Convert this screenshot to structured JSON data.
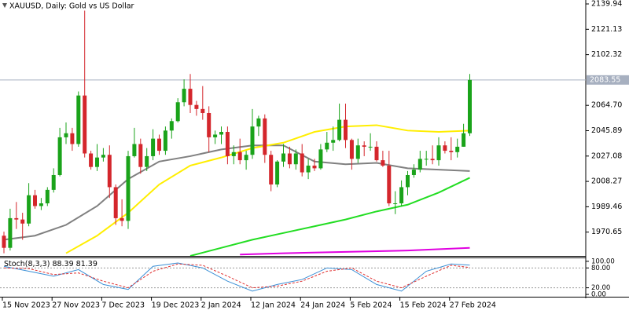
{
  "chart_data": {
    "type": "candlestick",
    "title": "XAUUSD, Daily:  Gold vs US Dollar",
    "categories": [
      "15 Nov 2023",
      null,
      null,
      null,
      null,
      null,
      null,
      null,
      "27 Nov 2023",
      null,
      null,
      null,
      null,
      null,
      null,
      null,
      "7 Dec 2023",
      null,
      null,
      null,
      null,
      null,
      null,
      null,
      "19 Dec 2023",
      null,
      null,
      null,
      null,
      null,
      null,
      null,
      "2 Jan 2024",
      null,
      null,
      null,
      null,
      null,
      null,
      null,
      "12 Jan 2024",
      null,
      null,
      null,
      null,
      null,
      null,
      null,
      "24 Jan 2024",
      null,
      null,
      null,
      null,
      null,
      null,
      null,
      "5 Feb 2024",
      null,
      null,
      null,
      null,
      null,
      null,
      null,
      "15 Feb 2024",
      null,
      null,
      null,
      null,
      null,
      null,
      null,
      "27 Feb 2024",
      null,
      null,
      null
    ],
    "open": [
      1968,
      1959,
      1981,
      1980,
      1977,
      1998,
      1990,
      1992,
      2002,
      2013,
      2041,
      2044,
      2036,
      2072,
      2029,
      2019,
      2026,
      2028,
      2004,
      1981,
      1979,
      2027,
      2036,
      2019,
      2027,
      2040,
      2031,
      2046,
      2053,
      2067,
      2077,
      2065,
      2062,
      2059,
      2041,
      2043,
      2045,
      2027,
      2030,
      2024,
      2028,
      2049,
      2055,
      2028,
      2006,
      2023,
      2029,
      2021,
      2029,
      2015,
      2020,
      2018,
      2032,
      2037,
      2039,
      2054,
      2039,
      2025,
      2035,
      2034,
      2034,
      2024,
      2020,
      1992,
      1992,
      2004,
      2013,
      2017,
      2025,
      2025,
      2024,
      2035,
      2031,
      2030,
      2034,
      2044
    ],
    "high": [
      1971,
      1988,
      1993,
      1985,
      2007,
      2002,
      1996,
      2004,
      2018,
      2048,
      2052,
      2048,
      2075,
      2135,
      2031,
      2036,
      2033,
      2035,
      2006,
      1995,
      2031,
      2048,
      2040,
      2033,
      2047,
      2043,
      2049,
      2055,
      2070,
      2084,
      2088,
      2068,
      2079,
      2064,
      2046,
      2049,
      2049,
      2035,
      2040,
      2031,
      2062,
      2057,
      2058,
      2031,
      2024,
      2036,
      2034,
      2032,
      2036,
      2025,
      2025,
      2036,
      2045,
      2049,
      2066,
      2066,
      2040,
      2040,
      2038,
      2044,
      2038,
      2031,
      2031,
      2001,
      2009,
      2016,
      2021,
      2031,
      2031,
      2035,
      2041,
      2038,
      2041,
      2040,
      2051,
      2088
    ],
    "low": [
      1955,
      1957,
      1973,
      1965,
      1975,
      1988,
      1987,
      1990,
      2000,
      2012,
      2036,
      2031,
      2034,
      2026,
      2017,
      2016,
      2023,
      1996,
      1976,
      1975,
      1973,
      2026,
      2014,
      2016,
      2024,
      2028,
      2028,
      2040,
      2052,
      2064,
      2059,
      2057,
      2054,
      2030,
      2036,
      2036,
      2021,
      2021,
      2021,
      2017,
      2025,
      2042,
      2022,
      2001,
      2004,
      2019,
      2018,
      2017,
      2012,
      2010,
      2016,
      2017,
      2030,
      2031,
      2038,
      2033,
      2017,
      2022,
      2027,
      2031,
      2023,
      2019,
      1990,
      1984,
      1990,
      1998,
      2011,
      2015,
      2020,
      2021,
      2020,
      2029,
      2024,
      2026,
      2034,
      2042
    ],
    "close": [
      1959,
      1981,
      1980,
      1977,
      1998,
      1990,
      1992,
      2002,
      2013,
      2041,
      2044,
      2036,
      2072,
      2029,
      2019,
      2026,
      2028,
      2004,
      1981,
      1979,
      2027,
      2036,
      2019,
      2027,
      2040,
      2031,
      2046,
      2053,
      2067,
      2077,
      2065,
      2062,
      2059,
      2041,
      2043,
      2045,
      2027,
      2030,
      2024,
      2028,
      2049,
      2055,
      2028,
      2006,
      2023,
      2029,
      2021,
      2029,
      2015,
      2020,
      2018,
      2032,
      2037,
      2039,
      2054,
      2039,
      2025,
      2035,
      2034,
      2034,
      2024,
      2020,
      1992,
      1992,
      2004,
      2013,
      2017,
      2025,
      2025,
      2024,
      2035,
      2031,
      2030,
      2034,
      2044,
      2083.55
    ],
    "up_color": "#1aa31a",
    "down_color": "#d4262c",
    "ylim": [
      1953,
      2142.86
    ],
    "yticks": [
      1970.65,
      1989.46,
      2008.27,
      2027.08,
      2045.89,
      {
        "value": 2064.7,
        "label": "2064.70"
      },
      2102.32,
      2121.13,
      2139.94
    ],
    "current_price": 2083.55,
    "indicators": [
      {
        "color": "#808080",
        "x": [
          0,
          5,
          10,
          15,
          20,
          25,
          30,
          35,
          40,
          45,
          50,
          55,
          60,
          65,
          70,
          75
        ],
        "values": [
          1965,
          1968,
          1976,
          1990,
          2010,
          2023,
          2027,
          2032,
          2035,
          2035,
          2023,
          2021,
          2022,
          2018,
          2017,
          2016
        ]
      },
      {
        "color": "#ffee00",
        "x": [
          10,
          15,
          20,
          25,
          30,
          35,
          40,
          45,
          50,
          55,
          60,
          65,
          70,
          75
        ],
        "values": [
          1955,
          1968,
          1985,
          2006,
          2020,
          2026,
          2033,
          2037,
          2045,
          2049,
          2050,
          2046,
          2045,
          2046
        ]
      },
      {
        "color": "#22dd22",
        "x": [
          30,
          35,
          40,
          45,
          50,
          55,
          60,
          65,
          70,
          75
        ],
        "values": [
          1953,
          1959,
          1965,
          1970,
          1975,
          1980,
          1986,
          1991,
          2000,
          2011
        ]
      },
      {
        "color": "#e000e0",
        "x": [
          38,
          45,
          55,
          65,
          75
        ],
        "values": [
          1954,
          1955,
          1956,
          1957,
          1959
        ]
      }
    ],
    "stoch": {
      "label": "Stoch(8,3,3)",
      "main_value": 88.39,
      "signal_value": 81.39,
      "y2lim": [
        -7,
        111.6
      ],
      "y2ticks": [
        {
          "value": 0,
          "label": "0.00"
        },
        {
          "value": 20,
          "label": "20.00"
        },
        {
          "value": 80,
          "label": "80.00"
        },
        {
          "value": 100,
          "label": "100.00"
        }
      ],
      "levels": [
        20,
        80
      ],
      "series": [
        {
          "color": "#3a8fd6",
          "dashed": false,
          "x": [
            0,
            4,
            8,
            12,
            16,
            20,
            24,
            28,
            32,
            36,
            40,
            44,
            48,
            52,
            56,
            60,
            64,
            68,
            72,
            75
          ],
          "values": [
            85,
            70,
            55,
            75,
            30,
            15,
            85,
            95,
            80,
            40,
            10,
            30,
            45,
            80,
            75,
            30,
            10,
            70,
            92,
            88.39
          ]
        },
        {
          "color": "#e03030",
          "dashed": true,
          "x": [
            0,
            4,
            8,
            12,
            16,
            20,
            24,
            28,
            32,
            36,
            40,
            44,
            48,
            52,
            56,
            60,
            64,
            68,
            72,
            75
          ],
          "values": [
            80,
            78,
            60,
            65,
            40,
            20,
            70,
            92,
            88,
            55,
            20,
            25,
            40,
            70,
            80,
            40,
            20,
            55,
            88,
            81.39
          ]
        }
      ]
    }
  }
}
